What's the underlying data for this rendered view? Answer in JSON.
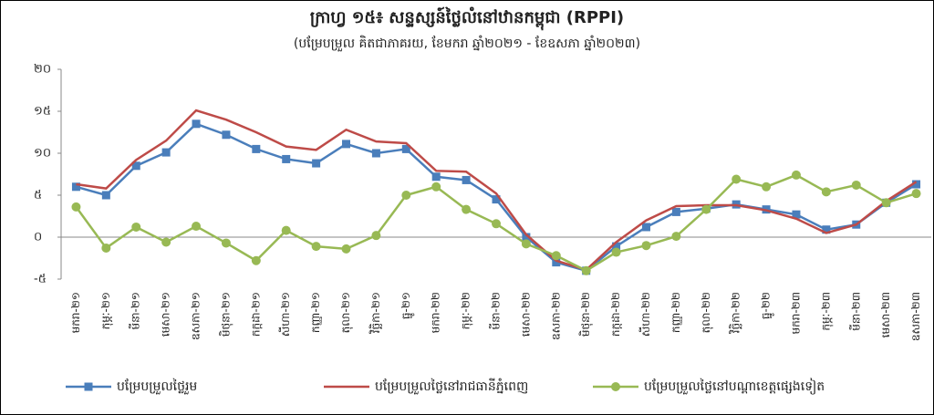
{
  "chart_data": {
    "type": "line",
    "title": "ក្រាហ្វ ១៥៖ សន្ទស្សន៍ថ្លៃលំនៅឋានកម្ពុជា (RPPI)",
    "subtitle": "(បម្រែបម្រួល គិតជាភាគរយ, ខែមករា ឆ្នាំ២០២១ - ខែឧសភា ឆ្នាំ២០២៣)",
    "categories": [
      "មករា-២១",
      "កុម្ភៈ-២១",
      "មីនា-២១",
      "មេសា-២១",
      "ឧសភា-២១",
      "មិថុនា-២១",
      "កក្កដា-២១",
      "សីហា-២១",
      "កញ្ញា-២១",
      "តុលា-២១",
      "វិច្ឆិកា-២១",
      "ធ្នូ-២១",
      "មករា-២២",
      "កុម្ភៈ-២២",
      "មីនា-២២",
      "មេសា-២២",
      "ឧសភា-២២",
      "មិថុនា-២២",
      "កក្កដា-២២",
      "សីហា-២២",
      "កញ្ញា-២២",
      "តុលា-២២",
      "វិច្ឆិកា-២២",
      "ធ្នូ-២២",
      "មករា-២៣",
      "កុម្ភៈ-២៣",
      "មីនា-២៣",
      "មេសា-២៣",
      "ឧសភា-២៣"
    ],
    "series": [
      {
        "name": "បម្រែបម្រួលថ្លៃរួម",
        "color": "#4a7ebb",
        "marker": "square",
        "values": [
          6.0,
          5.0,
          8.5,
          10.1,
          13.5,
          12.2,
          10.5,
          9.3,
          8.8,
          11.1,
          10.0,
          10.5,
          7.2,
          6.8,
          4.5,
          0.0,
          -3.0,
          -4.0,
          -1.1,
          1.2,
          3.0,
          3.4,
          3.9,
          3.3,
          2.7,
          0.9,
          1.5,
          4.1,
          6.3
        ]
      },
      {
        "name": "បម្រែបម្រួលថ្លៃនៅរាជធានីភ្នំពេញ",
        "color": "#be4b48",
        "marker": "none",
        "values": [
          6.3,
          5.8,
          9.2,
          11.5,
          15.1,
          14.0,
          12.5,
          10.8,
          10.4,
          12.8,
          11.4,
          11.2,
          7.9,
          7.8,
          5.2,
          0.3,
          -2.8,
          -3.9,
          -0.6,
          2.0,
          3.7,
          3.8,
          3.8,
          3.2,
          2.2,
          0.5,
          1.5,
          4.3,
          6.6
        ]
      },
      {
        "name": "បម្រែបម្រួលថ្លៃនៅបណ្តាខេត្តផ្សេងទៀត",
        "color": "#98b954",
        "marker": "circle",
        "values": [
          3.6,
          -1.3,
          1.2,
          -0.6,
          1.3,
          -0.7,
          -2.8,
          0.8,
          -1.1,
          -1.4,
          0.2,
          5.0,
          6.0,
          3.3,
          1.6,
          -0.8,
          -2.2,
          -4.0,
          -1.8,
          -1.0,
          0.1,
          3.3,
          6.9,
          6.0,
          7.4,
          5.4,
          6.2,
          4.1,
          5.2
        ]
      }
    ],
    "ylim": [
      -5,
      20
    ],
    "yticks": [
      {
        "value": -5,
        "label": "-៥"
      },
      {
        "value": 0,
        "label": "០"
      },
      {
        "value": 5,
        "label": "៥"
      },
      {
        "value": 10,
        "label": "១០"
      },
      {
        "value": 15,
        "label": "១៥"
      },
      {
        "value": 20,
        "label": "២០"
      }
    ],
    "legend": "bottom"
  }
}
